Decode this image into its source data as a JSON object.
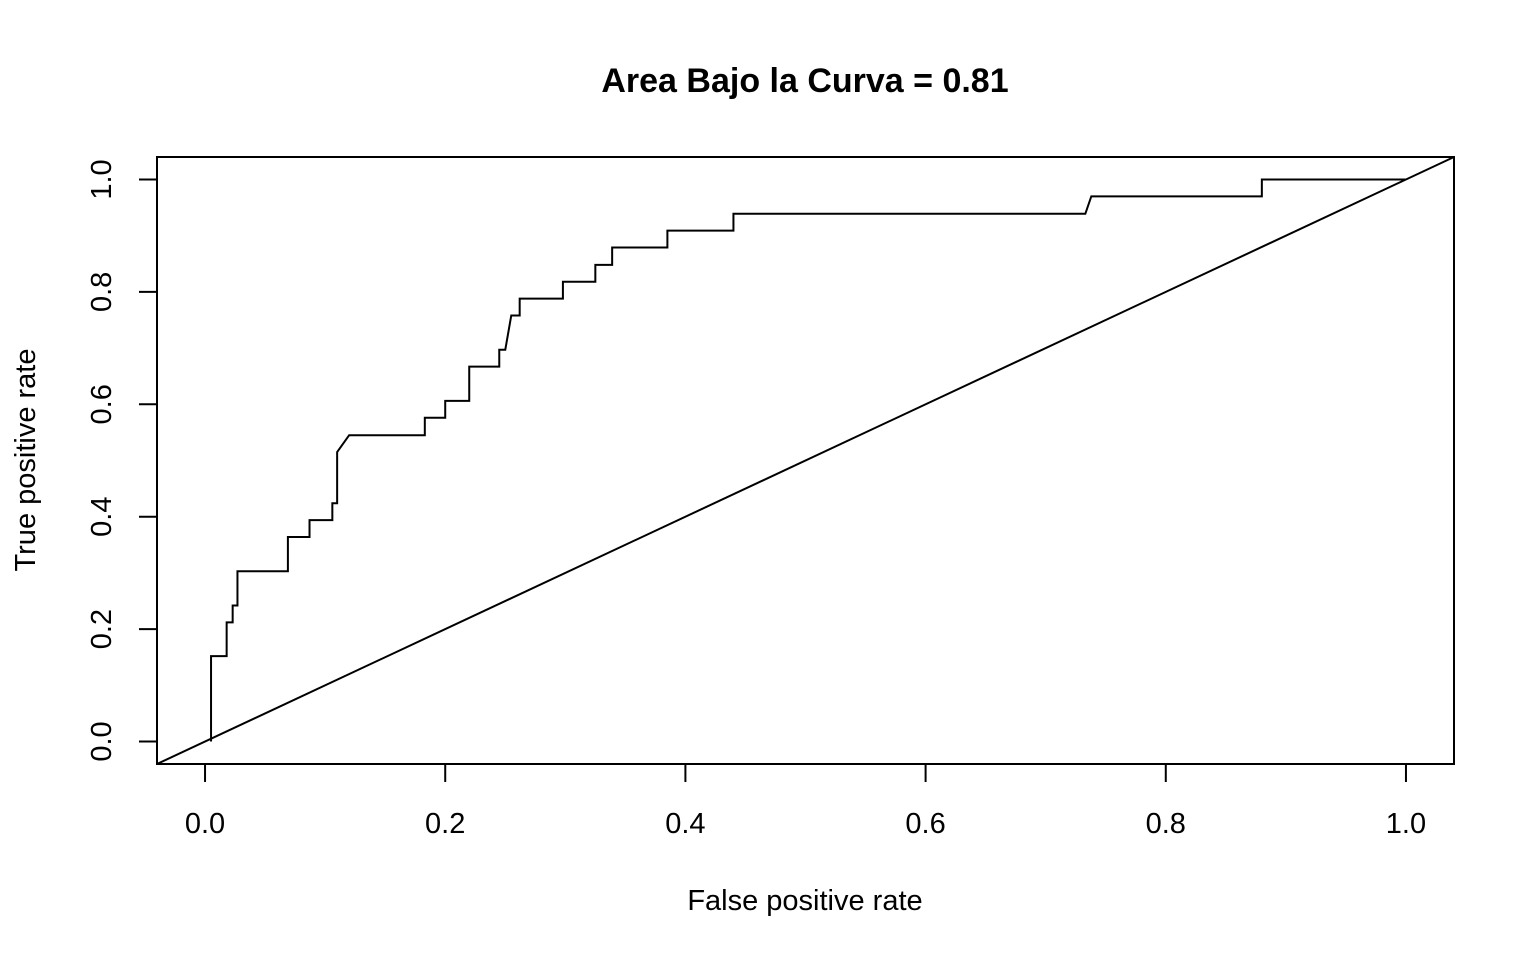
{
  "chart_data": {
    "type": "line",
    "title": "Area Bajo la Curva = 0.81",
    "xlabel": "False positive rate",
    "ylabel": "True positive rate",
    "xlim": [
      -0.04,
      1.04
    ],
    "ylim": [
      -0.04,
      1.04
    ],
    "x_ticks": [
      "0.0",
      "0.2",
      "0.4",
      "0.6",
      "0.8",
      "1.0"
    ],
    "y_ticks": [
      "0.0",
      "0.2",
      "0.4",
      "0.6",
      "0.8",
      "1.0"
    ],
    "grid": false,
    "legend": "none",
    "series": [
      {
        "x": [
          0.005,
          0.005,
          0.018,
          0.018,
          0.023,
          0.023,
          0.027,
          0.027,
          0.069,
          0.069,
          0.087,
          0.087,
          0.106,
          0.106,
          0.11,
          0.11,
          0.12,
          0.183,
          0.183,
          0.2,
          0.2,
          0.22,
          0.22,
          0.245,
          0.245,
          0.25,
          0.255,
          0.262,
          0.262,
          0.298,
          0.298,
          0.325,
          0.325,
          0.339,
          0.339,
          0.385,
          0.385,
          0.44,
          0.44,
          0.733,
          0.738,
          0.88,
          0.88,
          1.0
        ],
        "y": [
          0.0,
          0.152,
          0.152,
          0.212,
          0.212,
          0.242,
          0.242,
          0.303,
          0.303,
          0.364,
          0.364,
          0.394,
          0.394,
          0.424,
          0.424,
          0.515,
          0.545,
          0.545,
          0.576,
          0.576,
          0.606,
          0.606,
          0.667,
          0.667,
          0.697,
          0.697,
          0.758,
          0.758,
          0.788,
          0.788,
          0.818,
          0.818,
          0.848,
          0.848,
          0.879,
          0.879,
          0.909,
          0.909,
          0.939,
          0.939,
          0.97,
          0.97,
          1.0,
          1.0
        ]
      },
      {
        "x": [
          -0.04,
          1.04
        ],
        "y": [
          -0.04,
          1.04
        ]
      }
    ]
  }
}
